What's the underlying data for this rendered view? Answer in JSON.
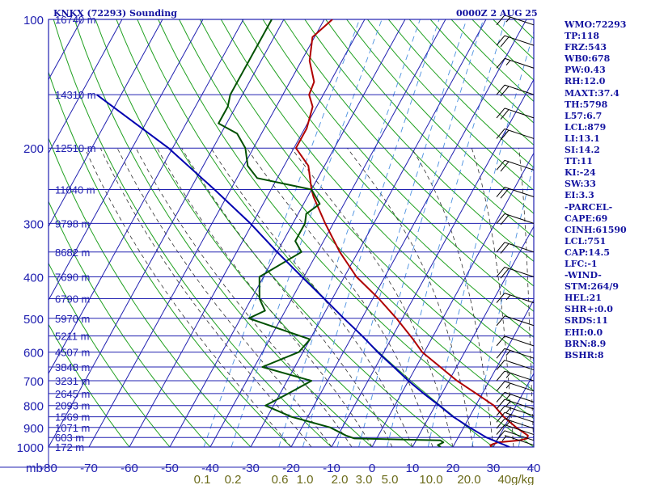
{
  "header": {
    "title": "KNKX (72293) Sounding",
    "valid_time": "0000Z  2 AUG 25"
  },
  "indices": [
    "WMO:72293",
    "TP:118",
    "FRZ:543",
    "WB0:678",
    "PW:0.43",
    "RH:12.0",
    "MAXT:37.4",
    "TH:5798",
    "L57:6.7",
    "LCL:879",
    "LI:13.1",
    "SI:14.2",
    "TT:11",
    "KI:-24",
    "SW:33",
    "EI:3.3",
    "-PARCEL-",
    "CAPE:69",
    "CINH:61590",
    "LCL:751",
    "CAP:14.5",
    "LFC:-1",
    "-WIND-",
    "STM:264/9",
    "HEL:21",
    "SHR+:0.0",
    "SRDS:11",
    "EHI:0.0",
    "BRN:8.9",
    "BSHR:8"
  ],
  "colors": {
    "grid": "#2020b0",
    "dry_adiabat": "#20a020",
    "moist_adiabat": "#303030",
    "mixing_ratio": "#4a90e0",
    "temperature": "#b00000",
    "dewpoint": "#005000",
    "parcel": "#0000b0",
    "wind_barb": "#000000",
    "mixing_label": "#6b6b1a",
    "header_text": "#1414a0"
  },
  "chart_data": {
    "type": "line",
    "title": "KNKX (72293) Sounding",
    "xlabel": "",
    "ylabel": "mb",
    "x_units": "C",
    "y_units": "mb",
    "xlim": [
      -80,
      40
    ],
    "ylim": [
      1000,
      100
    ],
    "y_scale": "log",
    "skew": true,
    "grid": true,
    "x_ticks": [
      -80,
      -70,
      -60,
      -50,
      -40,
      -30,
      -20,
      -10,
      0,
      10,
      20,
      30,
      40
    ],
    "x_tick_labels": [
      "-80",
      "-70",
      "-60",
      "-50",
      "-40",
      "-30",
      "-20",
      "-10",
      "0",
      "10",
      "20",
      "30",
      "40"
    ],
    "x_axis_label": "mb",
    "y_ticks": [
      1000,
      900,
      800,
      700,
      600,
      500,
      400,
      300,
      200,
      100
    ],
    "height_labels": [
      {
        "p": 1000,
        "label": "172 m"
      },
      {
        "p": 950,
        "label": "603 m"
      },
      {
        "p": 900,
        "label": "1071 m"
      },
      {
        "p": 850,
        "label": "1569 m"
      },
      {
        "p": 800,
        "label": "2093 m"
      },
      {
        "p": 750,
        "label": "2645 m"
      },
      {
        "p": 700,
        "label": "3231 m"
      },
      {
        "p": 650,
        "label": "3848 m"
      },
      {
        "p": 600,
        "label": "4507 m"
      },
      {
        "p": 550,
        "label": "5211 m"
      },
      {
        "p": 500,
        "label": "5970 m"
      },
      {
        "p": 450,
        "label": "6790 m"
      },
      {
        "p": 400,
        "label": "7690 m"
      },
      {
        "p": 350,
        "label": "8682 m"
      },
      {
        "p": 300,
        "label": "9798 m"
      },
      {
        "p": 250,
        "label": "11040 m"
      },
      {
        "p": 200,
        "label": "12510 m"
      },
      {
        "p": 150,
        "label": "14310 m"
      },
      {
        "p": 100,
        "label": "16740 m"
      }
    ],
    "mixing_ratio_labels": [
      "0.1",
      "0.2",
      "0.6",
      "1.0",
      "2.0",
      "3.0",
      "5.0",
      "10.0",
      "20.0",
      "40g/kg"
    ],
    "mixing_ratio_values": [
      0.1,
      0.2,
      0.6,
      1.0,
      2.0,
      3.0,
      5.0,
      10.0,
      20.0,
      40.0
    ],
    "series": [
      {
        "name": "",
        "p": [
          1000,
          990,
          975,
          965,
          955,
          940,
          900,
          850,
          800,
          750,
          700,
          650,
          600,
          560,
          500,
          450,
          400,
          350,
          300,
          260,
          250,
          220,
          200,
          180,
          160,
          150,
          140,
          125,
          110,
          100
        ],
        "t": [
          29.5,
          29.0,
          30.5,
          35.5,
          37.2,
          37.0,
          33.0,
          28.5,
          24.5,
          18.5,
          12.0,
          6.0,
          -0.5,
          -4.5,
          -11.5,
          -18.5,
          -27.0,
          -34.5,
          -42.0,
          -48.5,
          -50.0,
          -54.0,
          -59.5,
          -59.5,
          -61.0,
          -63.5,
          -64.0,
          -68.0,
          -70.5,
          -68.0
        ]
      },
      {
        "name": "",
        "p": [
          1000,
          990,
          975,
          965,
          955,
          940,
          900,
          850,
          800,
          750,
          700,
          650,
          600,
          560,
          500,
          480,
          450,
          400,
          350,
          330,
          300,
          285,
          270,
          250,
          235,
          220,
          200,
          185,
          175,
          160,
          150,
          100
        ],
        "t": [
          17.0,
          16.0,
          17.0,
          16.0,
          -5.5,
          -8.0,
          -13.0,
          -24.0,
          -32.0,
          -28.0,
          -24.0,
          -38.0,
          -31.0,
          -30.0,
          -48.0,
          -45.0,
          -48.0,
          -51.0,
          -44.0,
          -47.0,
          -47.0,
          -48.0,
          -46.0,
          -50.0,
          -65.0,
          -69.0,
          -72.0,
          -76.0,
          -82.0,
          -82.0,
          -83.0,
          -83.0
        ]
      },
      {
        "name": "",
        "p": [
          1000,
          950,
          900,
          850,
          800,
          750,
          700,
          650,
          600,
          550,
          500,
          450,
          400,
          350,
          300,
          250,
          200,
          150
        ],
        "t": [
          34.0,
          27.0,
          21.5,
          16.0,
          11.0,
          5.5,
          0.0,
          -5.5,
          -11.5,
          -17.5,
          -24.5,
          -32.0,
          -40.5,
          -50.0,
          -60.5,
          -74.0,
          -91.0,
          -116.0
        ]
      }
    ],
    "wind_barbs": [
      {
        "p": 990,
        "speed_kt": 5
      },
      {
        "p": 965,
        "speed_kt": 10
      },
      {
        "p": 935,
        "speed_kt": 10
      },
      {
        "p": 905,
        "speed_kt": 15
      },
      {
        "p": 875,
        "speed_kt": 15
      },
      {
        "p": 845,
        "speed_kt": 15
      },
      {
        "p": 815,
        "speed_kt": 15
      },
      {
        "p": 785,
        "speed_kt": 15
      },
      {
        "p": 740,
        "speed_kt": 15
      },
      {
        "p": 700,
        "speed_kt": 15
      },
      {
        "p": 660,
        "speed_kt": 10
      },
      {
        "p": 620,
        "speed_kt": 15
      },
      {
        "p": 580,
        "speed_kt": 10
      },
      {
        "p": 520,
        "speed_kt": 10
      },
      {
        "p": 460,
        "speed_kt": 15
      },
      {
        "p": 400,
        "speed_kt": 20
      },
      {
        "p": 350,
        "speed_kt": 20
      },
      {
        "p": 300,
        "speed_kt": 20
      },
      {
        "p": 260,
        "speed_kt": 20
      },
      {
        "p": 225,
        "speed_kt": 20
      },
      {
        "p": 190,
        "speed_kt": 20
      },
      {
        "p": 170,
        "speed_kt": 20
      },
      {
        "p": 150,
        "speed_kt": 20
      },
      {
        "p": 130,
        "speed_kt": 15
      },
      {
        "p": 115,
        "speed_kt": 20
      },
      {
        "p": 103,
        "speed_kt": 15
      }
    ]
  }
}
